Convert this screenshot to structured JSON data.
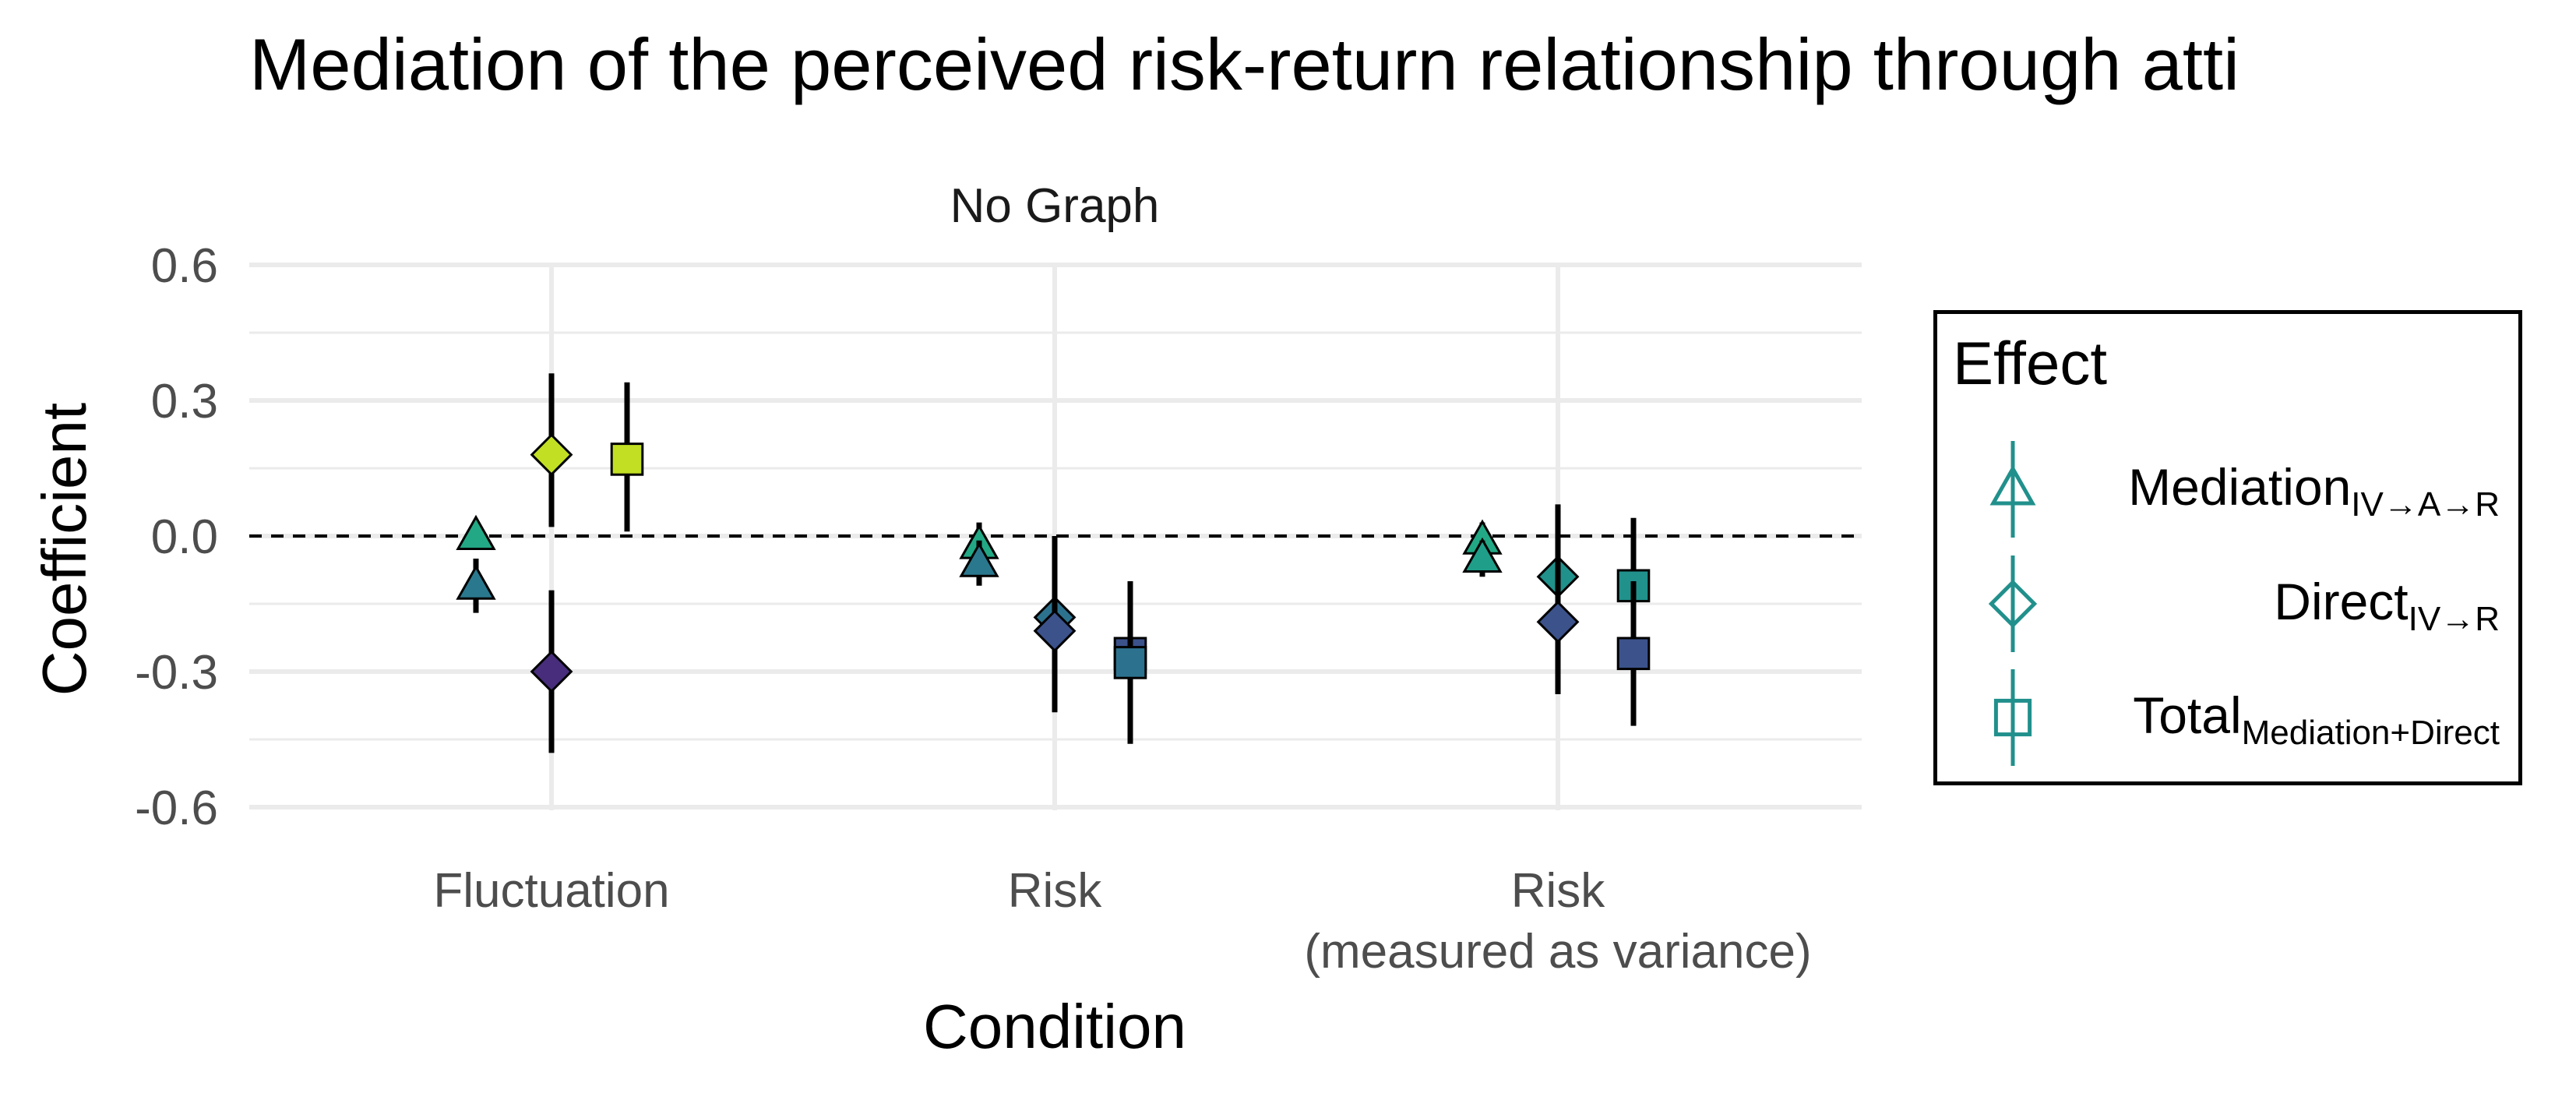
{
  "chart_data": {
    "type": "scatter",
    "title": "Mediation of the perceived risk-return relationship through atti",
    "panel_label": "No Graph",
    "xlabel": "Condition",
    "ylabel": "Coefficient",
    "categories": [
      [
        "Fluctuation"
      ],
      [
        "Risk"
      ],
      [
        "Risk",
        "(measured as variance)"
      ]
    ],
    "ylim": [
      -0.6,
      0.6
    ],
    "y_ticks": [
      {
        "value": 0.6,
        "label": "0.6"
      },
      {
        "value": 0.3,
        "label": "0.3"
      },
      {
        "value": 0.0,
        "label": "0.0"
      },
      {
        "value": -0.3,
        "label": "-0.3"
      },
      {
        "value": -0.6,
        "label": "-0.6"
      }
    ],
    "reference_line": 0,
    "grid": true,
    "legend": {
      "title": "Effect",
      "position": "right",
      "items": [
        {
          "shape": "triangle",
          "main": "Mediation",
          "sub": "IV→A→R"
        },
        {
          "shape": "diamond",
          "main": "Direct",
          "sub": "IV→R"
        },
        {
          "shape": "square",
          "main": "Total",
          "sub": "Mediation+Direct"
        }
      ]
    },
    "colors": {
      "legend_marker": "#21908c",
      "zero_line": "#000000",
      "grid": "#ebebeb",
      "axis_text": "#4d4d4d"
    },
    "series": [
      {
        "shape": "triangle",
        "points": [
          {
            "category": 0,
            "y": 0.0,
            "low": -0.02,
            "high": 0.02,
            "color": "#22a884"
          },
          {
            "category": 0,
            "y": -0.11,
            "low": -0.17,
            "high": -0.05,
            "color": "#2a788e"
          },
          {
            "category": 1,
            "y": -0.02,
            "low": -0.07,
            "high": 0.03,
            "color": "#22a884"
          },
          {
            "category": 1,
            "y": -0.06,
            "low": -0.11,
            "high": -0.01,
            "color": "#2a788e"
          },
          {
            "category": 2,
            "y": -0.01,
            "low": -0.05,
            "high": 0.03,
            "color": "#22a884"
          },
          {
            "category": 2,
            "y": -0.05,
            "low": -0.09,
            "high": -0.01,
            "color": "#1f9e89"
          }
        ]
      },
      {
        "shape": "diamond",
        "points": [
          {
            "category": 0,
            "y": 0.18,
            "low": 0.02,
            "high": 0.36,
            "color": "#c2df23"
          },
          {
            "category": 0,
            "y": -0.3,
            "low": -0.48,
            "high": -0.12,
            "color": "#472d7b"
          },
          {
            "category": 1,
            "y": -0.18,
            "low": -0.38,
            "high": 0.0,
            "color": "#2c728e"
          },
          {
            "category": 1,
            "y": -0.21,
            "low": -0.39,
            "high": -0.03,
            "color": "#3b528b"
          },
          {
            "category": 2,
            "y": -0.09,
            "low": -0.25,
            "high": 0.07,
            "color": "#21918c"
          },
          {
            "category": 2,
            "y": -0.19,
            "low": -0.35,
            "high": -0.03,
            "color": "#3b528b"
          }
        ]
      },
      {
        "shape": "square",
        "points": [
          {
            "category": 0,
            "y": 0.17,
            "low": 0.01,
            "high": 0.34,
            "color": "#c2df23"
          },
          {
            "category": 1,
            "y": -0.26,
            "low": -0.42,
            "high": -0.1,
            "color": "#3b528b"
          },
          {
            "category": 1,
            "y": -0.28,
            "low": -0.46,
            "high": -0.1,
            "color": "#2c728e"
          },
          {
            "category": 2,
            "y": -0.11,
            "low": -0.27,
            "high": 0.04,
            "color": "#21918c"
          },
          {
            "category": 2,
            "y": -0.26,
            "low": -0.42,
            "high": -0.1,
            "color": "#3b528b"
          }
        ]
      }
    ]
  }
}
